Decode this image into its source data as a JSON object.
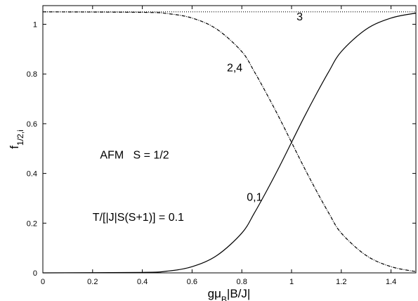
{
  "chart_data": {
    "type": "line",
    "xlabel": {
      "base": "gμ",
      "sub": "B",
      "rest": "|B/J|"
    },
    "ylabel": {
      "base": "f",
      "sub": "1/2,i"
    },
    "xlim": [
      0,
      1.5
    ],
    "ylim": [
      0,
      1.075
    ],
    "xticks": [
      0,
      0.2,
      0.4,
      0.6,
      0.8,
      1,
      1.2,
      1.4
    ],
    "xtick_labels": [
      "0",
      "0.2",
      "0.4",
      "0.6",
      "0.8",
      "1",
      "1.2",
      "1.4"
    ],
    "yticks": [
      0,
      0.2,
      0.4,
      0.6,
      0.8,
      1
    ],
    "ytick_labels": [
      "0",
      "0.2",
      "0.4",
      "0.6",
      "0.8",
      "1"
    ],
    "grid": false,
    "series": [
      {
        "name": "3",
        "style": "dotted",
        "x": [
          0,
          1.5
        ],
        "y": [
          1.05,
          1.05
        ]
      },
      {
        "name": "2,4",
        "style": "dash-dot",
        "x": [
          0,
          0.4,
          0.5,
          0.6,
          0.7,
          0.8,
          0.85,
          0.9,
          0.95,
          1.0,
          1.05,
          1.1,
          1.15,
          1.2,
          1.3,
          1.4,
          1.5
        ],
        "y": [
          1.05,
          1.048,
          1.043,
          1.025,
          0.98,
          0.89,
          0.81,
          0.72,
          0.625,
          0.525,
          0.425,
          0.33,
          0.24,
          0.16,
          0.07,
          0.025,
          0.005
        ]
      },
      {
        "name": "0,1",
        "style": "solid",
        "x": [
          0,
          0.4,
          0.5,
          0.6,
          0.7,
          0.8,
          0.85,
          0.9,
          0.95,
          1.0,
          1.05,
          1.1,
          1.15,
          1.2,
          1.3,
          1.4,
          1.5
        ],
        "y": [
          0.0,
          0.002,
          0.007,
          0.025,
          0.07,
          0.16,
          0.24,
          0.33,
          0.425,
          0.525,
          0.625,
          0.72,
          0.81,
          0.89,
          0.98,
          1.025,
          1.045
        ]
      }
    ],
    "annotations": [
      {
        "text": "3",
        "x": 1.02,
        "y": 1.015
      },
      {
        "text": "2,4",
        "x": 0.74,
        "y": 0.81
      },
      {
        "text": "0,1",
        "x": 0.82,
        "y": 0.29
      },
      {
        "text": "AFM   S = 1/2",
        "x": 0.23,
        "y": 0.46
      },
      {
        "text": "T/[|J|S(S+1)] = 0.1",
        "x": 0.2,
        "y": 0.21
      }
    ],
    "colors": {
      "axis": "#000000",
      "lines": "#000000",
      "background": "#ffffff"
    }
  }
}
